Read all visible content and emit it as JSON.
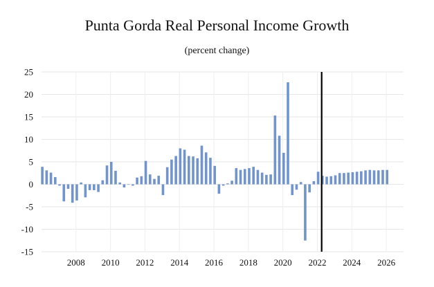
{
  "chart_data": {
    "type": "bar",
    "title": "Punta Gorda Real Personal Income Growth",
    "subtitle": "(percent change)",
    "xlabel": "",
    "ylabel": "",
    "ylim": [
      -15,
      25
    ],
    "y_ticks": [
      25,
      20,
      15,
      10,
      5,
      0,
      -5,
      -10,
      -15
    ],
    "x_tick_labels": [
      "2008",
      "2010",
      "2012",
      "2014",
      "2016",
      "2018",
      "2020",
      "2022",
      "2024",
      "2026"
    ],
    "x_range": [
      2006.0,
      2027.0
    ],
    "forecast_divider_x": 2022.25,
    "grid": true,
    "bar_color": "#7294cc",
    "series": [
      {
        "name": "Real Personal Income Growth",
        "x_start": 2006.0,
        "step": 0.25,
        "values": [
          3.9,
          3.1,
          2.6,
          1.6,
          -0.3,
          -3.8,
          -1.0,
          -4.1,
          -3.6,
          0.4,
          -2.9,
          -1.3,
          -1.3,
          -1.7,
          0.9,
          4.2,
          5.0,
          3.0,
          0.4,
          -0.7,
          -0.1,
          -0.3,
          1.5,
          1.8,
          5.2,
          2.2,
          1.2,
          1.9,
          -2.4,
          3.8,
          5.5,
          6.3,
          8.0,
          7.7,
          6.3,
          6.2,
          5.8,
          8.6,
          7.1,
          5.9,
          4.1,
          -2.1,
          -0.3,
          0.2,
          0.8,
          3.6,
          3.2,
          3.4,
          3.6,
          3.9,
          3.2,
          2.6,
          2.1,
          2.2,
          15.3,
          10.8,
          7.0,
          22.7,
          -2.4,
          -1.2,
          0.5,
          -12.5,
          -1.8,
          0.7,
          2.8,
          1.9,
          1.7,
          1.8,
          2.0,
          2.5,
          2.5,
          2.6,
          2.7,
          2.8,
          2.9,
          3.1,
          3.2,
          3.1,
          3.1,
          3.2,
          3.2
        ]
      }
    ]
  }
}
